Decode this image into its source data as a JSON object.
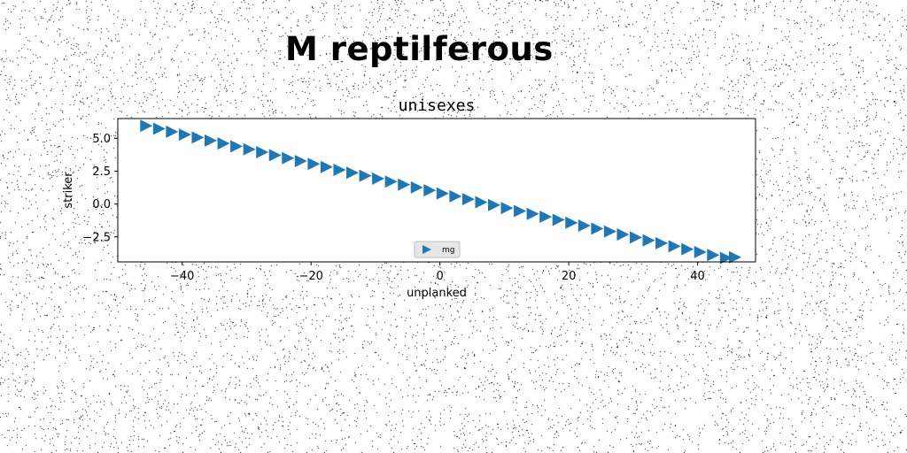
{
  "figure": {
    "suptitle": "M reptilferous"
  },
  "chart_data": {
    "type": "scatter",
    "title": "unisexes",
    "xlabel": "unplanked",
    "ylabel": "striker",
    "xlim": [
      -50,
      49
    ],
    "ylim": [
      -4.4,
      6.5
    ],
    "xticks": [
      -40,
      -20,
      0,
      20,
      40
    ],
    "xtick_labels": [
      "−40",
      "−20",
      "0",
      "20",
      "40"
    ],
    "yticks": [
      -2.5,
      0.0,
      2.5,
      5.0
    ],
    "ytick_labels": [
      "−2.5",
      "0.0",
      "2.5",
      "5.0"
    ],
    "grid": false,
    "legend_position": "lower center",
    "series": [
      {
        "name": "mg",
        "color": "#1f77b4",
        "marker": "triangle-right",
        "x": [
          -45.7,
          -43.7,
          -41.7,
          -39.7,
          -37.7,
          -35.7,
          -33.7,
          -31.7,
          -29.7,
          -27.7,
          -25.7,
          -23.7,
          -21.7,
          -19.7,
          -17.7,
          -15.7,
          -13.7,
          -11.7,
          -9.7,
          -7.7,
          -5.7,
          -3.7,
          -1.7,
          0.3,
          2.3,
          4.3,
          6.3,
          8.3,
          10.3,
          12.3,
          14.3,
          16.3,
          18.3,
          20.3,
          22.3,
          24.3,
          26.3,
          28.3,
          30.3,
          32.3,
          34.3,
          36.3,
          38.3,
          40.3,
          42.3,
          44.3,
          45.7
        ],
        "y": [
          5.95,
          5.73,
          5.5,
          5.28,
          5.06,
          4.83,
          4.61,
          4.39,
          4.16,
          3.94,
          3.72,
          3.49,
          3.27,
          3.05,
          2.82,
          2.6,
          2.38,
          2.15,
          1.93,
          1.71,
          1.48,
          1.26,
          1.04,
          0.81,
          0.59,
          0.37,
          0.14,
          -0.08,
          -0.3,
          -0.53,
          -0.75,
          -0.97,
          -1.2,
          -1.42,
          -1.64,
          -1.87,
          -2.09,
          -2.31,
          -2.54,
          -2.76,
          -2.98,
          -3.21,
          -3.43,
          -3.65,
          -3.88,
          -4.1,
          -4.05
        ]
      }
    ]
  }
}
